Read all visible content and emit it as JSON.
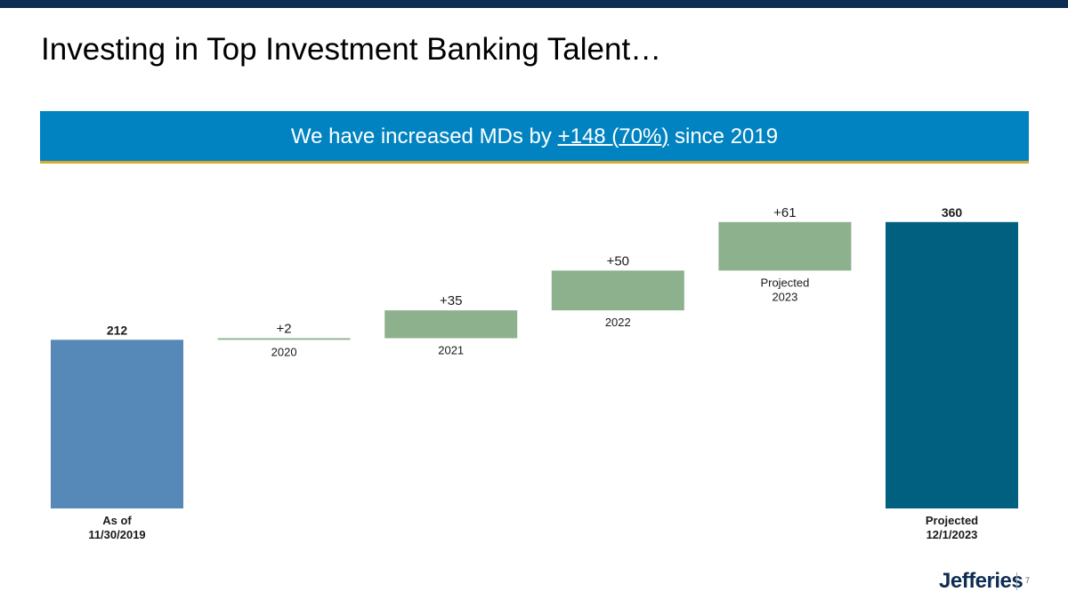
{
  "title": "Investing in Top Investment Banking Talent…",
  "banner": {
    "prefix": "We have increased MDs by ",
    "highlight": "+148 (70%)",
    "suffix": " since 2019"
  },
  "colors": {
    "topbar": "#0e2d52",
    "banner": "#0283c1",
    "banner_rule": "#d8a92a",
    "start_bar": "#5689b8",
    "increment_bar": "#8db08d",
    "end_bar": "#01607f"
  },
  "chart_data": {
    "type": "bar",
    "subtype": "waterfall",
    "categories": [
      "As of\n11/30/2019",
      "2020",
      "2021",
      "2022",
      "Projected\n2023",
      "Projected\n12/1/2023"
    ],
    "values": [
      212,
      2,
      35,
      50,
      61,
      360
    ],
    "kinds": [
      "total",
      "delta",
      "delta",
      "delta",
      "delta",
      "total"
    ],
    "data_labels": [
      "212",
      "+2",
      "+35",
      "+50",
      "+61",
      "360"
    ],
    "ylim": [
      0,
      360
    ]
  },
  "footer": {
    "logo": "Jefferies",
    "page_number": "7"
  }
}
